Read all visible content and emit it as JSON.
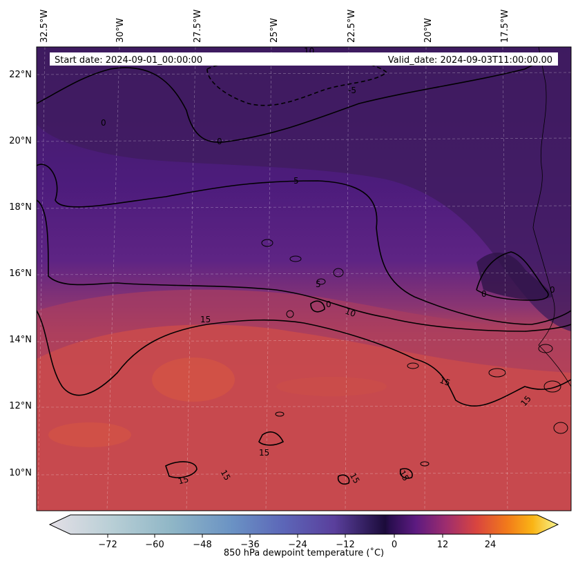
{
  "header": {
    "start_date": "Start date: 2024-09-01_00:00:00",
    "valid_date": "Valid_date: 2024-09-03T11:00:00.00"
  },
  "lon_labels": [
    "32.5°W",
    "30°W",
    "27.5°W",
    "25°W",
    "22.5°W",
    "20°W",
    "17.5°W"
  ],
  "lat_labels": [
    "22°N",
    "20°N",
    "18°N",
    "16°N",
    "14°N",
    "12°N",
    "10°N"
  ],
  "contour_labels": [
    "10",
    "-5",
    "0",
    "0",
    "5",
    "5",
    "0",
    "10",
    "0",
    "0",
    "15",
    "15",
    "15",
    "15",
    "15",
    "15",
    "15",
    "15"
  ],
  "colorbar": {
    "ticks": [
      "−72",
      "−60",
      "−48",
      "−36",
      "−24",
      "−12",
      "0",
      "12",
      "24"
    ],
    "label": "850 hPa dewpoint temperature ($^\\circ$C)",
    "label_rendered": "850 hPa dewpoint temperature (˚C)"
  },
  "colors": {
    "moist": "#c94a4c",
    "very_moist": "#d9583f",
    "transition": "#7a2f6b",
    "dry": "#5a1f82",
    "very_dry": "#3d1a5c"
  }
}
